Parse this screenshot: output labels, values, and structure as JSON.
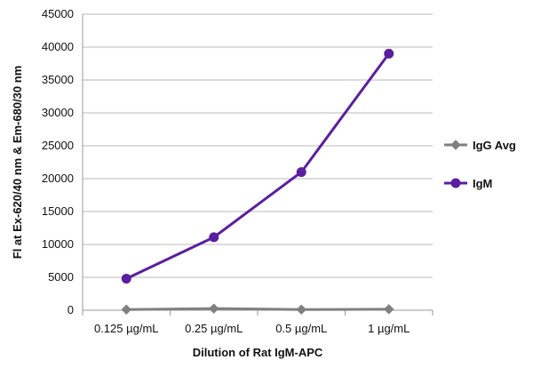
{
  "chart_data": {
    "type": "line",
    "title": "",
    "xlabel": "Dilution of Rat IgM-APC",
    "ylabel": "Fl at Ex-620/40 nm & Em-680/30 nm",
    "categories": [
      "0.125 µg/mL",
      "0.25 µg/mL",
      "0.5 µg/mL",
      "1 µg/mL"
    ],
    "ylim": [
      0,
      45000
    ],
    "yticks": [
      0,
      5000,
      10000,
      15000,
      20000,
      25000,
      30000,
      35000,
      40000,
      45000
    ],
    "grid": true,
    "legend_position": "right",
    "series": [
      {
        "name": "IgG Avg",
        "color": "#808080",
        "marker": "diamond",
        "values": [
          100,
          250,
          100,
          150
        ]
      },
      {
        "name": "IgM",
        "color": "#5a1fa0",
        "marker": "circle",
        "values": [
          4800,
          11100,
          21000,
          39000
        ]
      }
    ]
  }
}
